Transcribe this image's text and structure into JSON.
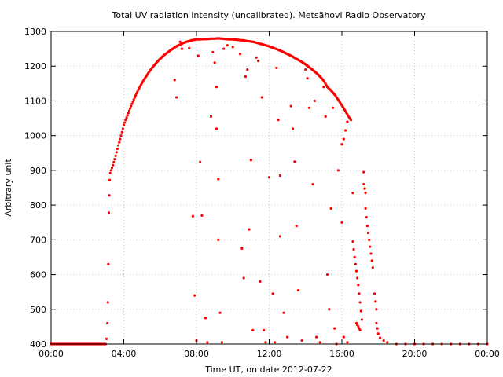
{
  "chart_data": {
    "type": "scatter",
    "title": "Total UV radiation intensity (uncalibrated). Metsähovi Radio Observatory",
    "xlabel": "Time UT, on date 2012-07-22",
    "ylabel": "Arbitrary unit",
    "xlim": [
      0,
      24
    ],
    "ylim": [
      400,
      1300
    ],
    "grid": true,
    "marker_color": "#ff0000",
    "x_ticks": [
      {
        "value": 0,
        "label": "00:00"
      },
      {
        "value": 4,
        "label": "04:00"
      },
      {
        "value": 8,
        "label": "08:00"
      },
      {
        "value": 12,
        "label": "12:00"
      },
      {
        "value": 16,
        "label": "16:00"
      },
      {
        "value": 20,
        "label": "20:00"
      },
      {
        "value": 24,
        "label": "00:00"
      }
    ],
    "y_ticks": [
      {
        "value": 400,
        "label": "400"
      },
      {
        "value": 500,
        "label": "500"
      },
      {
        "value": 600,
        "label": "600"
      },
      {
        "value": 700,
        "label": "700"
      },
      {
        "value": 800,
        "label": "800"
      },
      {
        "value": 900,
        "label": "900"
      },
      {
        "value": 1000,
        "label": "1000"
      },
      {
        "value": 1100,
        "label": "1100"
      },
      {
        "value": 1200,
        "label": "1200"
      },
      {
        "value": 1300,
        "label": "1300"
      }
    ],
    "series": [
      {
        "points": [
          [
            0.0,
            400
          ],
          [
            0.5,
            400
          ],
          [
            1.0,
            400
          ],
          [
            1.5,
            400
          ],
          [
            2.0,
            400
          ],
          [
            2.5,
            400
          ],
          [
            3.0,
            400
          ],
          [
            3.05,
            415
          ],
          [
            3.1,
            460
          ],
          [
            3.12,
            520
          ],
          [
            3.15,
            630
          ],
          [
            3.18,
            778
          ],
          [
            3.2,
            828
          ],
          [
            3.22,
            872
          ],
          [
            3.25,
            892
          ],
          [
            3.3,
            900
          ],
          [
            3.4,
            915
          ],
          [
            3.5,
            932
          ],
          [
            3.6,
            952
          ],
          [
            3.7,
            972
          ],
          [
            3.8,
            990
          ],
          [
            3.9,
            1010
          ],
          [
            4.0,
            1030
          ],
          [
            4.1,
            1045
          ],
          [
            4.2,
            1058
          ],
          [
            4.3,
            1072
          ],
          [
            4.4,
            1085
          ],
          [
            4.5,
            1098
          ],
          [
            4.6,
            1110
          ],
          [
            4.7,
            1121
          ],
          [
            4.8,
            1132
          ],
          [
            4.9,
            1142
          ],
          [
            5.0,
            1151
          ],
          [
            5.1,
            1160
          ],
          [
            5.2,
            1168
          ],
          [
            5.3,
            1176
          ],
          [
            5.4,
            1184
          ],
          [
            5.5,
            1191
          ],
          [
            5.6,
            1198
          ],
          [
            5.7,
            1204
          ],
          [
            5.8,
            1210
          ],
          [
            5.9,
            1216
          ],
          [
            6.0,
            1221
          ],
          [
            6.1,
            1226
          ],
          [
            6.2,
            1231
          ],
          [
            6.3,
            1235
          ],
          [
            6.4,
            1239
          ],
          [
            6.5,
            1243
          ],
          [
            6.6,
            1247
          ],
          [
            6.7,
            1250
          ],
          [
            6.8,
            1254
          ],
          [
            6.9,
            1257
          ],
          [
            7.0,
            1260
          ],
          [
            7.1,
            1262
          ],
          [
            7.2,
            1265
          ],
          [
            7.3,
            1267
          ],
          [
            7.4,
            1269
          ],
          [
            7.5,
            1271
          ],
          [
            7.6,
            1272
          ],
          [
            7.7,
            1274
          ],
          [
            7.8,
            1275
          ],
          [
            7.9,
            1276
          ],
          [
            8.0,
            1277
          ],
          [
            8.2,
            1277
          ],
          [
            8.4,
            1278
          ],
          [
            8.6,
            1278
          ],
          [
            8.8,
            1279
          ],
          [
            9.0,
            1279
          ],
          [
            9.2,
            1280
          ],
          [
            9.4,
            1279
          ],
          [
            9.6,
            1278
          ],
          [
            9.8,
            1277
          ],
          [
            10.0,
            1277
          ],
          [
            10.2,
            1276
          ],
          [
            10.4,
            1275
          ],
          [
            10.6,
            1274
          ],
          [
            10.8,
            1272
          ],
          [
            11.0,
            1271
          ],
          [
            11.2,
            1269
          ],
          [
            11.4,
            1266
          ],
          [
            11.6,
            1263
          ],
          [
            11.8,
            1260
          ],
          [
            12.0,
            1257
          ],
          [
            12.2,
            1253
          ],
          [
            12.4,
            1249
          ],
          [
            12.6,
            1245
          ],
          [
            12.8,
            1240
          ],
          [
            13.0,
            1235
          ],
          [
            13.2,
            1230
          ],
          [
            13.4,
            1224
          ],
          [
            13.6,
            1218
          ],
          [
            13.8,
            1212
          ],
          [
            14.0,
            1205
          ],
          [
            14.2,
            1197
          ],
          [
            14.4,
            1189
          ],
          [
            14.6,
            1180
          ],
          [
            14.8,
            1170
          ],
          [
            15.0,
            1158
          ],
          [
            15.2,
            1140
          ],
          [
            15.4,
            1130
          ],
          [
            15.6,
            1118
          ],
          [
            15.8,
            1103
          ],
          [
            16.0,
            1087
          ],
          [
            16.2,
            1070
          ],
          [
            16.4,
            1052
          ],
          [
            16.5,
            1045
          ],
          [
            16.3,
            1040
          ],
          [
            16.2,
            1015
          ],
          [
            16.1,
            990
          ],
          [
            16.0,
            975
          ],
          [
            16.6,
            835
          ],
          [
            16.6,
            695
          ],
          [
            16.7,
            650
          ],
          [
            16.8,
            610
          ],
          [
            16.9,
            570
          ],
          [
            17.0,
            520
          ],
          [
            17.1,
            470
          ],
          [
            16.8,
            460
          ],
          [
            17.0,
            440
          ],
          [
            17.2,
            895
          ],
          [
            17.2,
            860
          ],
          [
            17.3,
            835
          ],
          [
            17.3,
            790
          ],
          [
            17.4,
            740
          ],
          [
            17.5,
            700
          ],
          [
            17.6,
            660
          ],
          [
            17.7,
            620
          ],
          [
            17.8,
            545
          ],
          [
            17.9,
            500
          ],
          [
            17.9,
            460
          ],
          [
            18.0,
            430
          ],
          [
            18.1,
            418
          ],
          [
            18.3,
            410
          ],
          [
            18.5,
            405
          ],
          [
            19.0,
            400
          ],
          [
            19.5,
            400
          ],
          [
            20.0,
            400
          ],
          [
            20.5,
            400
          ],
          [
            21.0,
            400
          ],
          [
            21.5,
            400
          ],
          [
            22.0,
            400
          ],
          [
            22.5,
            400
          ],
          [
            23.0,
            400
          ],
          [
            23.5,
            400
          ],
          [
            24.0,
            400
          ],
          [
            6.8,
            1160
          ],
          [
            6.9,
            1110
          ],
          [
            7.1,
            1270
          ],
          [
            7.2,
            1250
          ],
          [
            7.6,
            1252
          ],
          [
            7.8,
            768
          ],
          [
            7.9,
            540
          ],
          [
            8.0,
            410
          ],
          [
            8.1,
            1230
          ],
          [
            8.2,
            924
          ],
          [
            8.3,
            770
          ],
          [
            8.5,
            475
          ],
          [
            8.6,
            405
          ],
          [
            8.8,
            1055
          ],
          [
            8.9,
            1240
          ],
          [
            9.0,
            1210
          ],
          [
            9.1,
            1140
          ],
          [
            9.1,
            1020
          ],
          [
            9.2,
            875
          ],
          [
            9.2,
            700
          ],
          [
            9.3,
            490
          ],
          [
            9.4,
            405
          ],
          [
            9.5,
            1250
          ],
          [
            9.7,
            1260
          ],
          [
            10.0,
            1255
          ],
          [
            10.4,
            1235
          ],
          [
            10.5,
            675
          ],
          [
            10.6,
            590
          ],
          [
            10.7,
            1170
          ],
          [
            10.8,
            1190
          ],
          [
            10.9,
            730
          ],
          [
            11.0,
            930
          ],
          [
            11.1,
            440
          ],
          [
            11.3,
            1225
          ],
          [
            11.4,
            1215
          ],
          [
            11.5,
            580
          ],
          [
            11.6,
            1110
          ],
          [
            11.7,
            440
          ],
          [
            11.8,
            405
          ],
          [
            12.0,
            880
          ],
          [
            12.2,
            545
          ],
          [
            12.3,
            405
          ],
          [
            12.4,
            1195
          ],
          [
            12.5,
            1045
          ],
          [
            12.6,
            885
          ],
          [
            12.6,
            710
          ],
          [
            12.8,
            490
          ],
          [
            13.0,
            420
          ],
          [
            13.2,
            1085
          ],
          [
            13.3,
            1020
          ],
          [
            13.4,
            925
          ],
          [
            13.5,
            740
          ],
          [
            13.6,
            555
          ],
          [
            13.8,
            410
          ],
          [
            14.0,
            1190
          ],
          [
            14.1,
            1165
          ],
          [
            14.2,
            1080
          ],
          [
            14.4,
            860
          ],
          [
            14.5,
            1100
          ],
          [
            14.6,
            420
          ],
          [
            14.8,
            405
          ],
          [
            15.0,
            1140
          ],
          [
            15.1,
            1055
          ],
          [
            15.2,
            600
          ],
          [
            15.3,
            500
          ],
          [
            15.4,
            790
          ],
          [
            15.5,
            1080
          ],
          [
            15.6,
            445
          ],
          [
            15.7,
            400
          ],
          [
            15.8,
            900
          ],
          [
            16.0,
            750
          ],
          [
            16.1,
            420
          ],
          [
            16.3,
            405
          ]
        ]
      }
    ]
  }
}
